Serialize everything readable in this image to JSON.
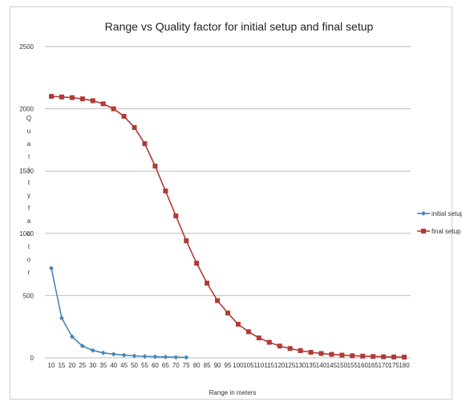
{
  "chart_data": {
    "type": "line",
    "title": "Range vs Quality factor for initial setup and final setup",
    "xlabel": "Range in meters",
    "ylabel": "Quality factor",
    "ylim": [
      0,
      2500
    ],
    "yticks": [
      0,
      500,
      1000,
      1500,
      2000,
      2500
    ],
    "categories": [
      10,
      15,
      20,
      25,
      30,
      35,
      40,
      45,
      50,
      55,
      60,
      65,
      70,
      75,
      80,
      85,
      90,
      95,
      100,
      105,
      110,
      115,
      120,
      125,
      130,
      135,
      140,
      145,
      150,
      155,
      160,
      165,
      170,
      175,
      180
    ],
    "grid": true,
    "legend_position": "right",
    "series": [
      {
        "name": "initial setup",
        "color": "#4a86b4",
        "marker": "diamond",
        "values": [
          720,
          320,
          170,
          95,
          60,
          40,
          30,
          22,
          16,
          12,
          9,
          7,
          5,
          4,
          null,
          null,
          null,
          null,
          null,
          null,
          null,
          null,
          null,
          null,
          null,
          null,
          null,
          null,
          null,
          null,
          null,
          null,
          null,
          null,
          null
        ]
      },
      {
        "name": "final setup",
        "color": "#b03a36",
        "marker": "square",
        "values": [
          2100,
          2095,
          2090,
          2080,
          2065,
          2040,
          2000,
          1940,
          1850,
          1720,
          1540,
          1340,
          1140,
          940,
          760,
          600,
          460,
          360,
          270,
          210,
          160,
          125,
          95,
          75,
          58,
          45,
          35,
          28,
          22,
          17,
          14,
          11,
          9,
          7,
          6
        ]
      }
    ]
  }
}
